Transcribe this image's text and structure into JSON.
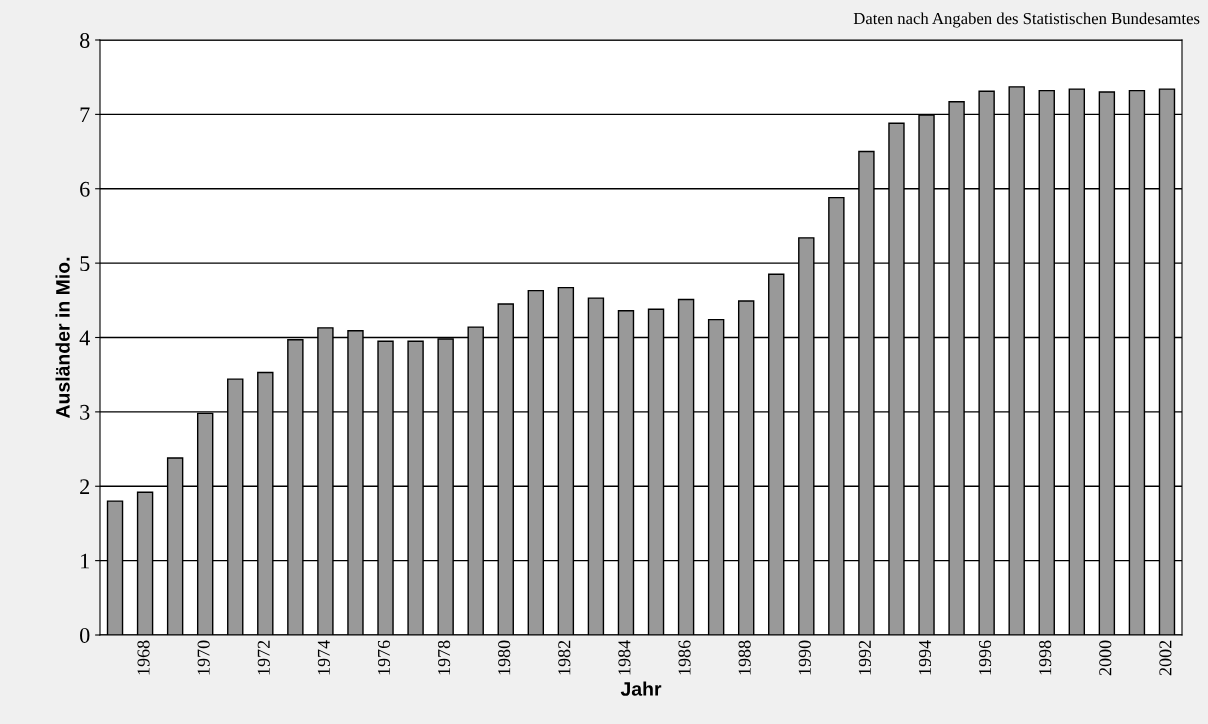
{
  "chart_data": {
    "type": "bar",
    "xlabel": "Jahr",
    "ylabel": "Ausländer in Mio.",
    "annotations": [
      "Daten nach Angaben des Statistischen Bundesamtes"
    ],
    "categories": [
      null,
      "1968",
      null,
      "1970",
      null,
      "1972",
      null,
      "1974",
      null,
      "1976",
      null,
      "1978",
      null,
      "1980",
      null,
      "1982",
      null,
      "1984",
      null,
      "1986",
      null,
      "1988",
      null,
      "1990",
      null,
      "1992",
      null,
      "1994",
      null,
      "1996",
      null,
      "1998",
      null,
      "2000",
      null,
      "2002"
    ],
    "values": [
      1.8,
      1.92,
      2.38,
      2.98,
      3.44,
      3.53,
      3.97,
      4.13,
      4.09,
      3.95,
      3.95,
      3.98,
      4.14,
      4.45,
      4.63,
      4.67,
      4.53,
      4.36,
      4.38,
      4.51,
      4.24,
      4.49,
      4.85,
      5.34,
      5.88,
      6.5,
      6.88,
      6.99,
      7.17,
      7.31,
      7.37,
      7.32,
      7.34,
      7.3,
      7.32,
      7.34
    ],
    "color": "#999999",
    "ylim": [
      0,
      8
    ],
    "yticks": [
      0,
      1,
      2,
      3,
      4,
      5,
      6,
      7,
      8
    ],
    "grid": "y"
  }
}
